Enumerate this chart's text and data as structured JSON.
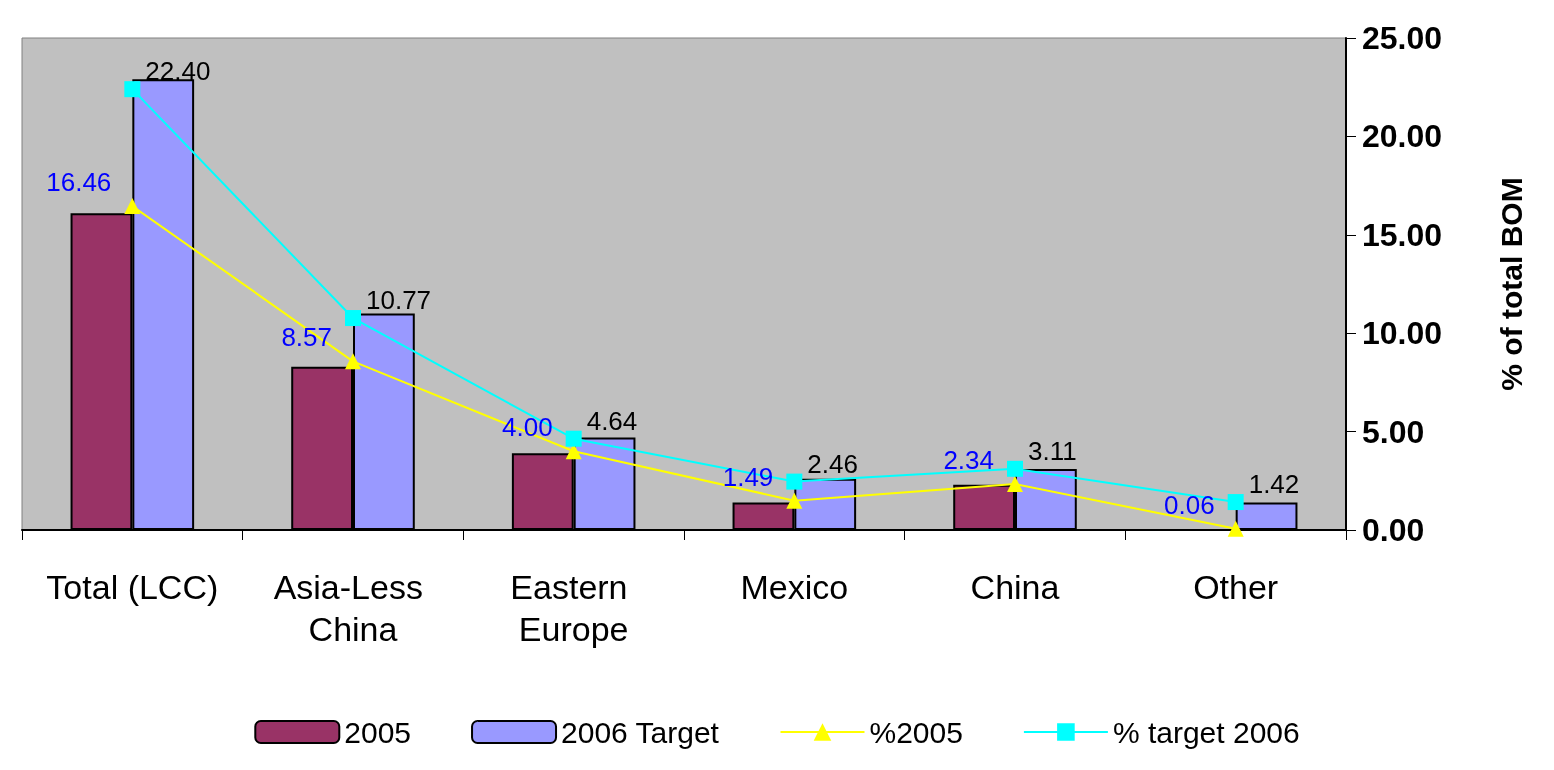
{
  "chart_data": {
    "type": "bar",
    "ylabel": "% of total BOM",
    "categories": [
      "Total (LCC)",
      "Asia-Less China",
      "Eastern Europe",
      "Mexico",
      "China",
      "Other"
    ],
    "series": [
      {
        "name": "2005",
        "color": "#993366",
        "values": [
          16.1,
          8.3,
          3.9,
          1.4,
          2.3,
          null
        ]
      },
      {
        "name": "2006 Target",
        "color": "#9999ff",
        "values": [
          22.9,
          11.0,
          4.7,
          2.6,
          3.1,
          1.4
        ]
      },
      {
        "name": "%2005",
        "type": "line",
        "color": "#ffff00",
        "marker": "triangle",
        "values": [
          16.46,
          8.57,
          4.0,
          1.49,
          2.34,
          0.06
        ],
        "value_labels": [
          "16.46",
          "8.57",
          "4.00",
          "1.49",
          "2.34",
          "0.06"
        ]
      },
      {
        "name": "% target 2006",
        "type": "line",
        "color": "#00ffff",
        "marker": "square",
        "values": [
          22.4,
          10.77,
          4.64,
          2.46,
          3.11,
          1.42
        ],
        "value_labels": [
          "22.40",
          "10.77",
          "4.64",
          "2.46",
          "3.11",
          "1.42"
        ]
      }
    ],
    "ylim": [
      0,
      25
    ],
    "yticks": [
      {
        "value": 0,
        "label": "0.00"
      },
      {
        "value": 5,
        "label": "5.00"
      },
      {
        "value": 10,
        "label": "10.00"
      },
      {
        "value": 15,
        "label": "15.00"
      },
      {
        "value": 20,
        "label": "20.00"
      },
      {
        "value": 25,
        "label": "25.00"
      }
    ],
    "legend": "bottom"
  }
}
